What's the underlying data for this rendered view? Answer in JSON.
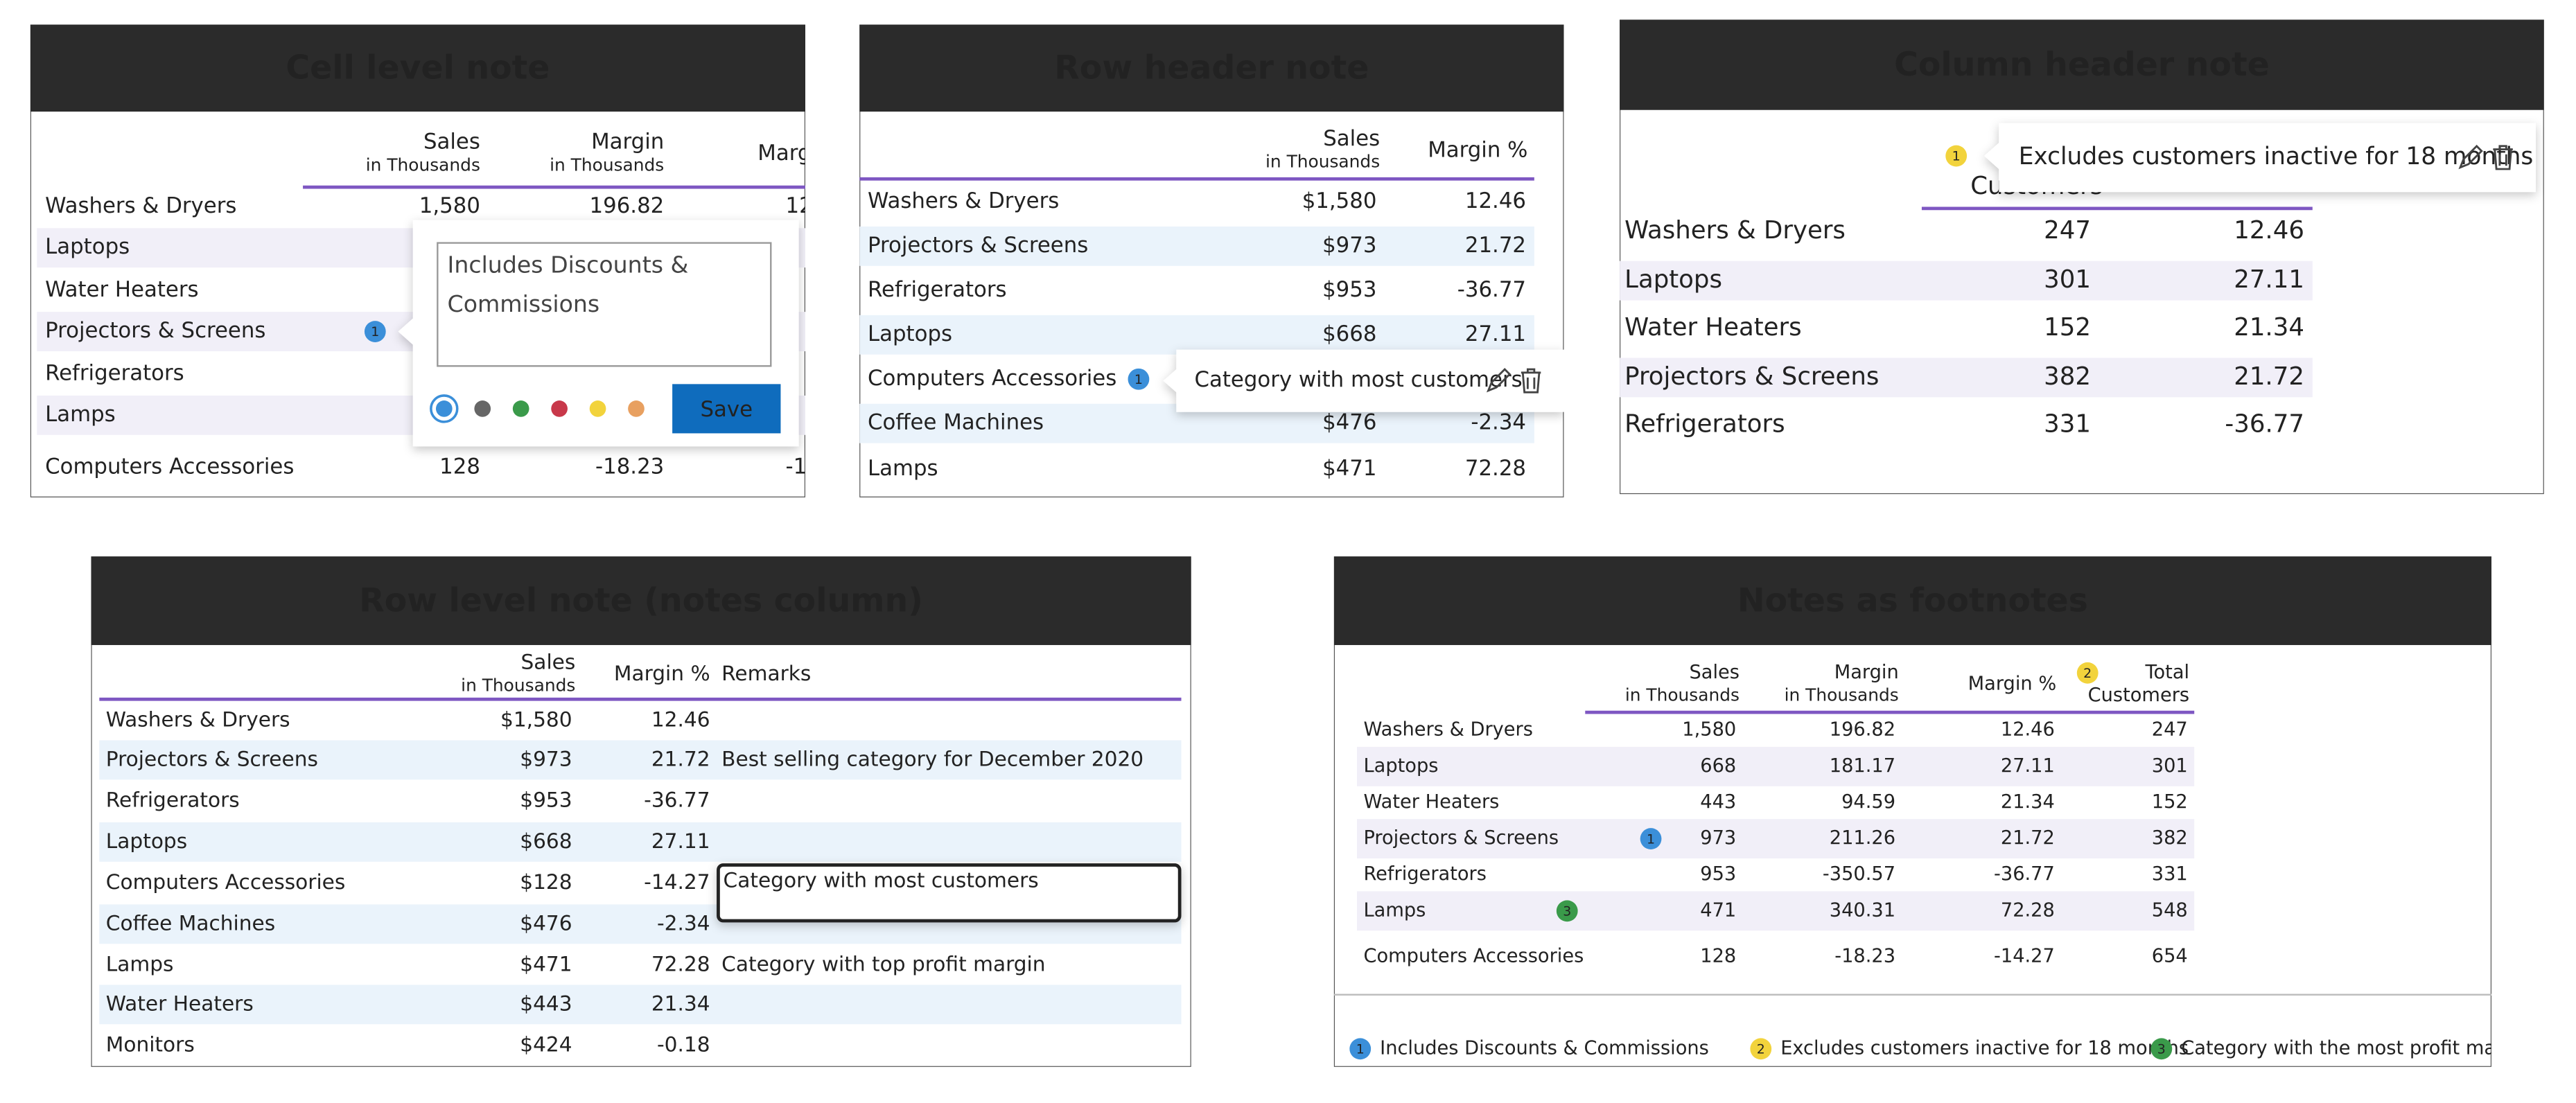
{
  "panels": [
    {
      "title": "Cell level note",
      "columns": [
        {
          "label": "Sales",
          "sublabel": "in Thousands"
        },
        {
          "label": "Margin",
          "sublabel": "in Thousands"
        },
        {
          "label": "Marg"
        }
      ],
      "rows": [
        {
          "label": "Washers & Dryers",
          "cells": [
            "1,580",
            "196.82",
            "12"
          ]
        },
        {
          "label": "Laptops",
          "cells": [
            null,
            null,
            "7"
          ]
        },
        {
          "label": "Water Heaters",
          "cells": [
            null,
            null,
            "1"
          ]
        },
        {
          "label": "Projectors & Screens",
          "cells": [
            null,
            null,
            "1"
          ]
        },
        {
          "label": "Refrigerators",
          "cells": [
            null,
            null,
            "6"
          ]
        },
        {
          "label": "Lamps",
          "cells": [
            null,
            null,
            "2"
          ]
        },
        {
          "label": "Computers Accessories",
          "cells": [
            "128",
            "-18.23",
            "-14"
          ]
        }
      ],
      "note": {
        "marker": "1",
        "color": "#3b8fd9",
        "text": "Includes Discounts & Commissions",
        "action": "Save"
      }
    },
    {
      "title": "Row header note",
      "columns": [
        {
          "label": "Sales",
          "sublabel": "in Thousands"
        },
        {
          "label": "Margin %"
        }
      ],
      "rows": [
        {
          "label": "Washers & Dryers",
          "cells": [
            "$1,580",
            "12.46"
          ]
        },
        {
          "label": "Projectors & Screens",
          "cells": [
            "$973",
            "21.72"
          ]
        },
        {
          "label": "Refrigerators",
          "cells": [
            "$953",
            "-36.77"
          ]
        },
        {
          "label": "Laptops",
          "cells": [
            "$668",
            "27.11"
          ]
        },
        {
          "label": "Computers Accessories",
          "cells": [
            null,
            null
          ]
        },
        {
          "label": "Coffee Machines",
          "cells": [
            "$476",
            "-2.34"
          ]
        },
        {
          "label": "Lamps",
          "cells": [
            "$471",
            "72.28"
          ]
        }
      ],
      "note": {
        "marker": "1",
        "color": "#3b8fd9",
        "text": "Category with most customers"
      }
    },
    {
      "title": "Column header note",
      "columns": [
        {
          "label": "Customers"
        }
      ],
      "rows": [
        {
          "label": "Washers & Dryers",
          "cells": [
            "247",
            "12.46"
          ]
        },
        {
          "label": "Laptops",
          "cells": [
            "301",
            "27.11"
          ]
        },
        {
          "label": "Water Heaters",
          "cells": [
            "152",
            "21.34"
          ]
        },
        {
          "label": "Projectors & Screens",
          "cells": [
            "382",
            "21.72"
          ]
        },
        {
          "label": "Refrigerators",
          "cells": [
            "331",
            "-36.77"
          ]
        }
      ],
      "note": {
        "marker": "1",
        "color": "#f2d33c",
        "text": "Excludes customers inactive for 18 months"
      }
    },
    {
      "title": "Row level note (notes column)",
      "columns": [
        {
          "label": "Sales",
          "sublabel": "in Thousands"
        },
        {
          "label": "Margin %"
        },
        {
          "label": "Remarks"
        }
      ],
      "rows": [
        {
          "label": "Washers & Dryers",
          "cells": [
            "$1,580",
            "12.46",
            null
          ]
        },
        {
          "label": "Projectors & Screens",
          "cells": [
            "$973",
            "21.72",
            "Best selling category for December 2020"
          ]
        },
        {
          "label": "Refrigerators",
          "cells": [
            "$953",
            "-36.77",
            null
          ]
        },
        {
          "label": "Laptops",
          "cells": [
            "$668",
            "27.11",
            null
          ]
        },
        {
          "label": "Computers Accessories",
          "cells": [
            "$128",
            "-14.27",
            "Category with most customers"
          ]
        },
        {
          "label": "Coffee Machines",
          "cells": [
            "$476",
            "-2.34",
            null
          ]
        },
        {
          "label": "Lamps",
          "cells": [
            "$471",
            "72.28",
            "Category with top profit margin"
          ]
        },
        {
          "label": "Water Heaters",
          "cells": [
            "$443",
            "21.34",
            null
          ]
        },
        {
          "label": "Monitors",
          "cells": [
            "$424",
            "-0.18",
            null
          ]
        }
      ]
    },
    {
      "title": "Notes as footnotes",
      "columns": [
        {
          "label": "Sales",
          "sublabel": "in Thousands"
        },
        {
          "label": "Margin",
          "sublabel": "in Thousands"
        },
        {
          "label": "Margin %"
        },
        {
          "label": "Total",
          "sublabel": "Customers",
          "note": "2"
        }
      ],
      "rows": [
        {
          "label": "Washers & Dryers",
          "cells": [
            "1,580",
            "196.82",
            "12.46",
            "247"
          ]
        },
        {
          "label": "Laptops",
          "cells": [
            "668",
            "181.17",
            "27.11",
            "301"
          ]
        },
        {
          "label": "Water Heaters",
          "cells": [
            "443",
            "94.59",
            "21.34",
            "152"
          ]
        },
        {
          "label": "Projectors & Screens",
          "cells": [
            "973",
            "211.26",
            "21.72",
            "382"
          ],
          "note": "1"
        },
        {
          "label": "Refrigerators",
          "cells": [
            "953",
            "-350.57",
            "-36.77",
            "331"
          ]
        },
        {
          "label": "Lamps",
          "cells": [
            "471",
            "340.31",
            "72.28",
            "548"
          ],
          "note": "3"
        },
        {
          "label": "Computers Accessories",
          "cells": [
            "128",
            "-18.23",
            "-14.27",
            "654"
          ]
        }
      ],
      "footnotes": [
        {
          "marker": "1",
          "color": "#3b8fd9",
          "text": "Includes Discounts & Commissions"
        },
        {
          "marker": "2",
          "color": "#f2d33c",
          "text": "Excludes customers inactive for 18 months"
        },
        {
          "marker": "3",
          "color": "#3a9a4a",
          "text": "Category with the most profit margin"
        }
      ]
    }
  ]
}
